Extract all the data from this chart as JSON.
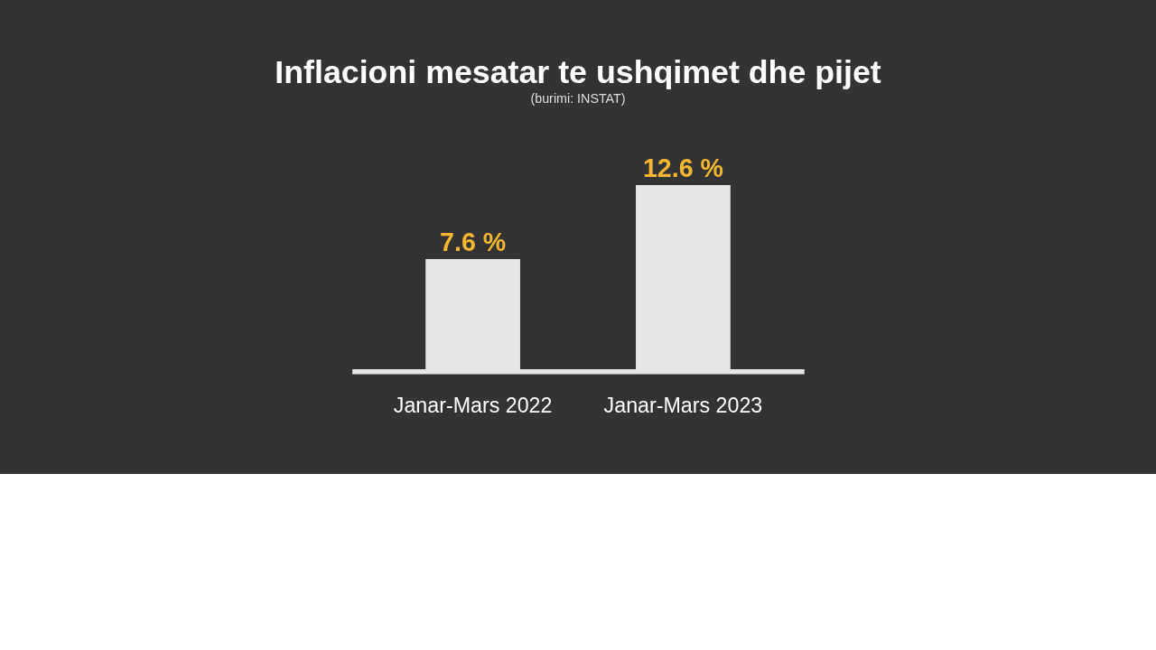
{
  "chart_data": {
    "type": "bar",
    "title": "Inflacioni mesatar te ushqimet dhe pijet",
    "subtitle": "(burimi: INSTAT)",
    "categories": [
      "Janar-Mars 2022",
      "Janar-Mars 2023"
    ],
    "values": [
      7.6,
      12.6
    ],
    "value_labels": [
      "7.6 %",
      "12.6 %"
    ],
    "color": "#e6e6e6"
  }
}
